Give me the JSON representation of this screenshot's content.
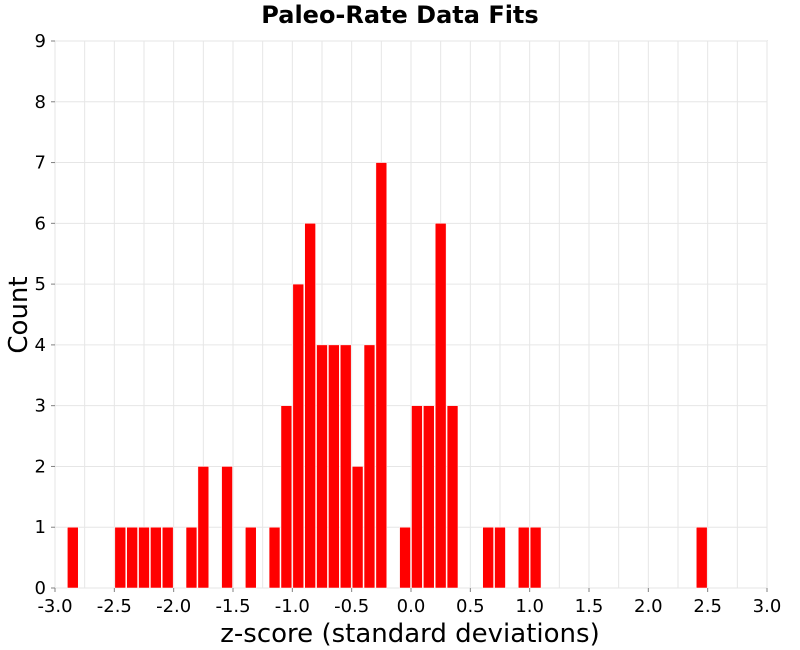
{
  "chart_data": {
    "type": "bar",
    "title": "Paleo-Rate Data Fits",
    "xlabel": "z-score (standard deviations)",
    "ylabel": "Count",
    "xlim": [
      -3.0,
      3.0
    ],
    "ylim": [
      0,
      9
    ],
    "x_ticks": [
      "-3.0",
      "-2.5",
      "-2.0",
      "-1.5",
      "-1.0",
      "-0.5",
      "0.0",
      "0.5",
      "1.0",
      "1.5",
      "2.0",
      "2.5",
      "3.0"
    ],
    "y_ticks": [
      "0",
      "1",
      "2",
      "3",
      "4",
      "5",
      "6",
      "7",
      "8",
      "9"
    ],
    "grid": true,
    "bar_color": "#ff0000",
    "bin_width": 0.1,
    "bins": [
      {
        "x": -2.85,
        "count": 1
      },
      {
        "x": -2.45,
        "count": 1
      },
      {
        "x": -2.35,
        "count": 1
      },
      {
        "x": -2.25,
        "count": 1
      },
      {
        "x": -2.15,
        "count": 1
      },
      {
        "x": -2.05,
        "count": 1
      },
      {
        "x": -1.85,
        "count": 1
      },
      {
        "x": -1.75,
        "count": 2
      },
      {
        "x": -1.55,
        "count": 2
      },
      {
        "x": -1.35,
        "count": 1
      },
      {
        "x": -1.15,
        "count": 1
      },
      {
        "x": -1.05,
        "count": 3
      },
      {
        "x": -0.95,
        "count": 5
      },
      {
        "x": -0.85,
        "count": 6
      },
      {
        "x": -0.75,
        "count": 4
      },
      {
        "x": -0.65,
        "count": 4
      },
      {
        "x": -0.55,
        "count": 4
      },
      {
        "x": -0.45,
        "count": 2
      },
      {
        "x": -0.35,
        "count": 4
      },
      {
        "x": -0.25,
        "count": 7
      },
      {
        "x": -0.05,
        "count": 1
      },
      {
        "x": 0.05,
        "count": 3
      },
      {
        "x": 0.15,
        "count": 3
      },
      {
        "x": 0.25,
        "count": 6
      },
      {
        "x": 0.35,
        "count": 3
      },
      {
        "x": 0.65,
        "count": 1
      },
      {
        "x": 0.75,
        "count": 1
      },
      {
        "x": 0.95,
        "count": 1
      },
      {
        "x": 1.05,
        "count": 1
      },
      {
        "x": 2.45,
        "count": 1
      }
    ]
  }
}
